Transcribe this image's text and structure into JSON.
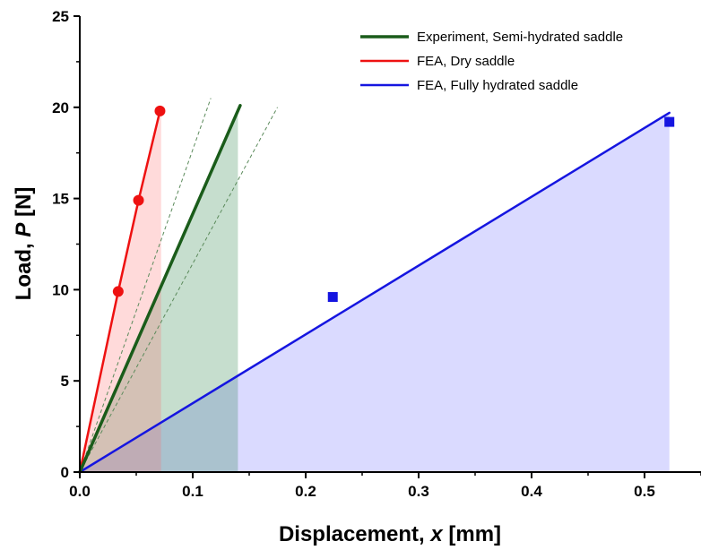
{
  "chart_data": {
    "type": "line",
    "xlabel": "Displacement, x [mm]",
    "ylabel": "Load, P [N]",
    "xlim": [
      0,
      0.55
    ],
    "ylim": [
      0,
      25
    ],
    "xticks": [
      0.0,
      0.1,
      0.2,
      0.3,
      0.4,
      0.5
    ],
    "xtick_labels": [
      "0.0",
      "0.1",
      "0.2",
      "0.3",
      "0.4",
      "0.5"
    ],
    "yticks": [
      0,
      5,
      10,
      15,
      20,
      25
    ],
    "ytick_labels": [
      "0",
      "5",
      "10",
      "15",
      "20",
      "25"
    ],
    "grid": false,
    "legend_position": "top-right",
    "legend": [
      {
        "label": "Experiment, Semi-hydrated saddle",
        "color": "#1a5c1a"
      },
      {
        "label": "FEA, Dry saddle",
        "color": "#ee1111"
      },
      {
        "label": "FEA, Fully hydrated saddle",
        "color": "#1515e0"
      }
    ],
    "series": [
      {
        "name": "Experiment, Semi-hydrated saddle",
        "color": "#1a5c1a",
        "fill_color": "#1a7a3a",
        "line": {
          "x": [
            0,
            0.142
          ],
          "y": [
            0,
            20.1
          ]
        },
        "fill_to_x": 0.14,
        "bounds": [
          {
            "x": [
              0,
              0.116
            ],
            "y": [
              0,
              20.5
            ]
          },
          {
            "x": [
              0,
              0.175
            ],
            "y": [
              0,
              20.0
            ]
          }
        ]
      },
      {
        "name": "FEA, Dry saddle",
        "color": "#ee1111",
        "fill_color": "#ff6b6b",
        "line": {
          "x": [
            0,
            0.034,
            0.052,
            0.071
          ],
          "y": [
            0,
            9.9,
            14.9,
            19.8
          ]
        },
        "markers": {
          "x": [
            0.034,
            0.052,
            0.071
          ],
          "y": [
            9.9,
            14.9,
            19.8
          ],
          "shape": "circle"
        },
        "fill_to_x": 0.072
      },
      {
        "name": "FEA, Fully hydrated saddle",
        "color": "#1515e0",
        "fill_color": "#6b6bff",
        "line": {
          "x": [
            0,
            0.522
          ],
          "y": [
            0,
            19.7
          ]
        },
        "markers": {
          "x": [
            0.224,
            0.522
          ],
          "y": [
            9.6,
            19.2
          ],
          "shape": "square"
        },
        "fill_to_x": 0.522
      }
    ]
  }
}
